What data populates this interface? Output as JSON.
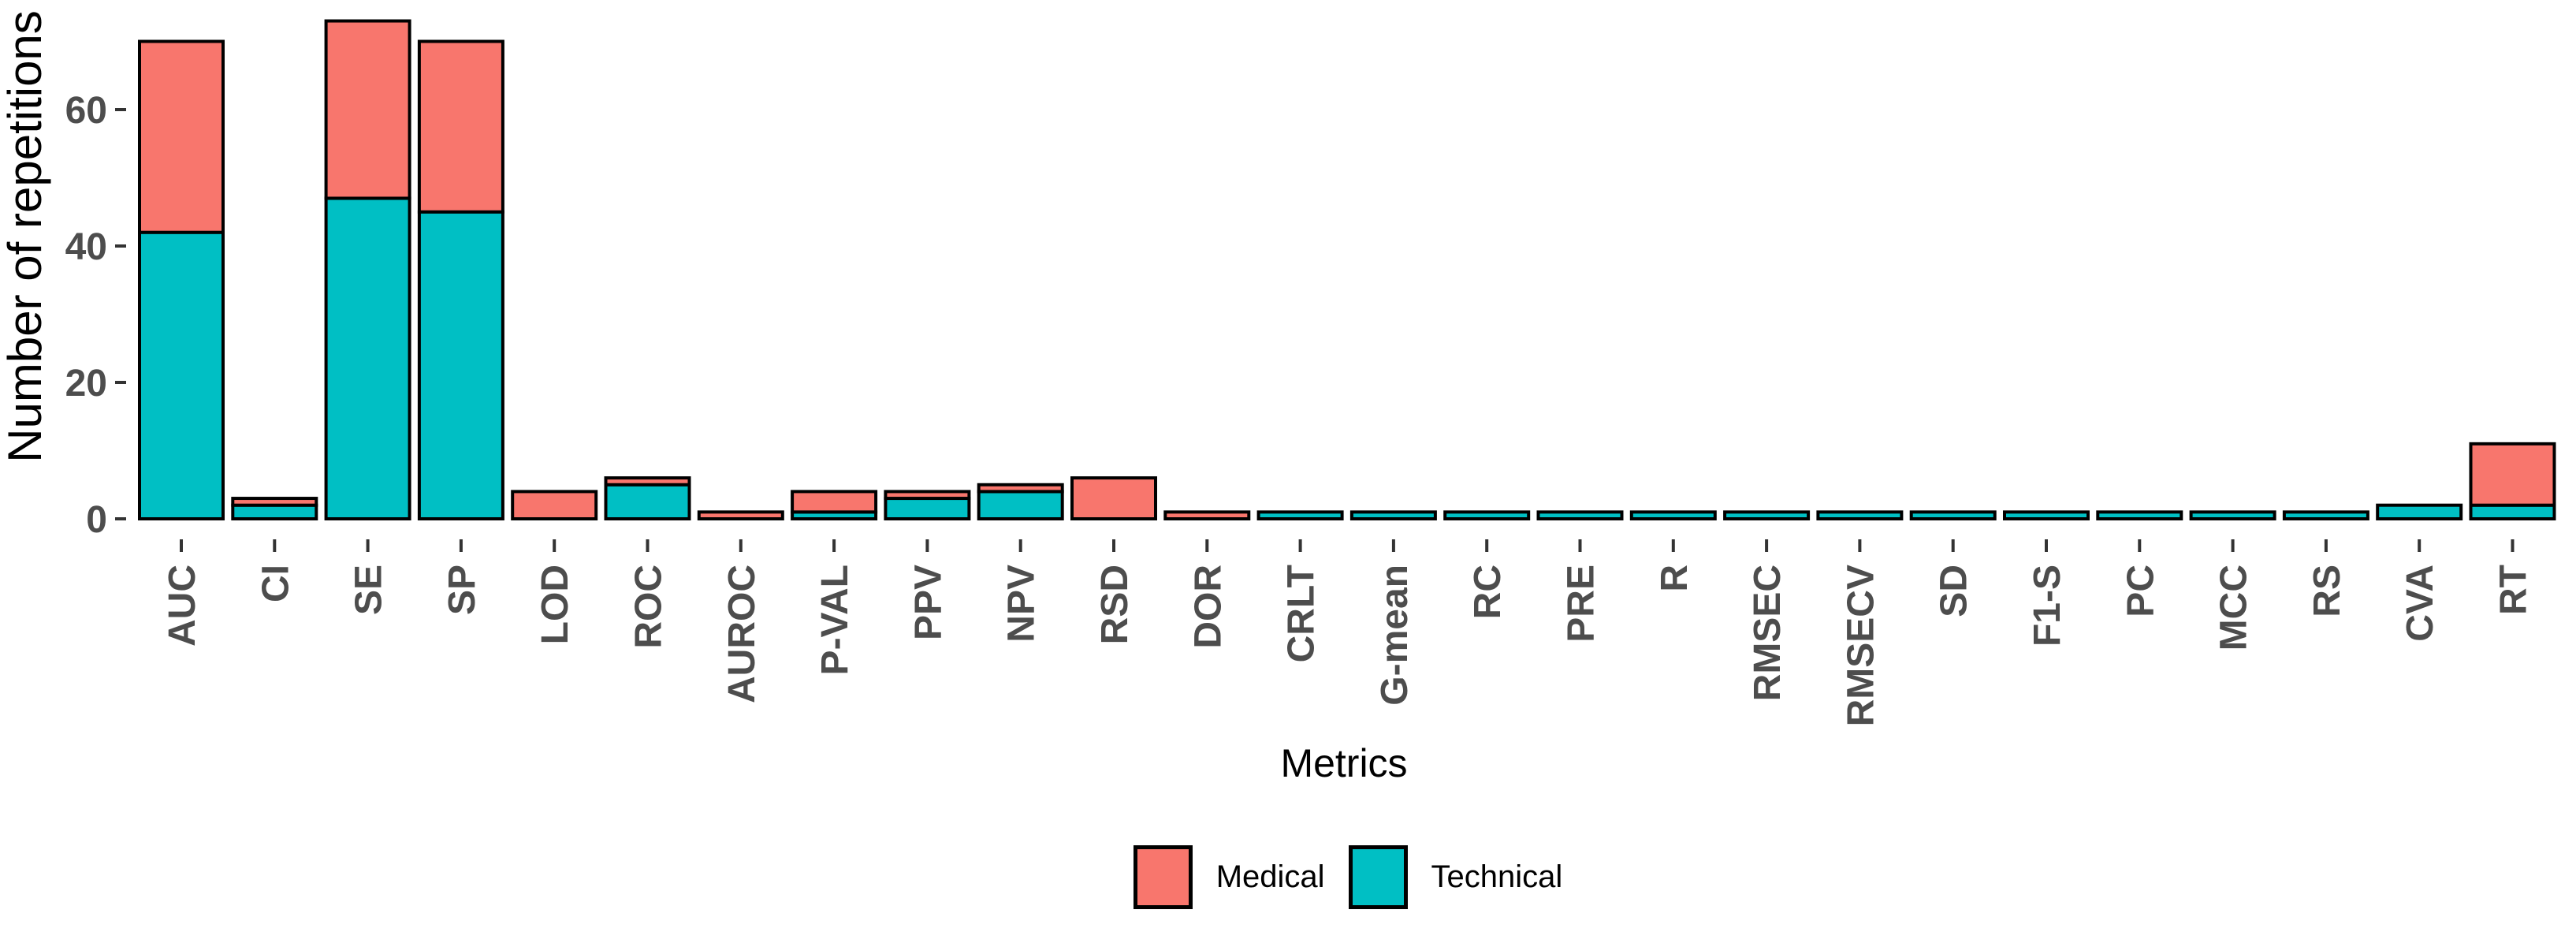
{
  "chart_data": {
    "type": "bar",
    "stacked": true,
    "title": "",
    "xlabel": "Metrics",
    "ylabel": "Number of repetitions",
    "categories": [
      "AUC",
      "CI",
      "SE",
      "SP",
      "LOD",
      "ROC",
      "AUROC",
      "P-VAL",
      "PPV",
      "NPV",
      "RSD",
      "DOR",
      "CRLT",
      "G-mean",
      "RC",
      "PRE",
      "R",
      "RMSEC",
      "RMSECV",
      "SD",
      "F1-S",
      "PC",
      "MCC",
      "RS",
      "CVA",
      "RT"
    ],
    "series": [
      {
        "name": "Medical",
        "color": "#F8766D",
        "values": [
          28,
          1,
          26,
          25,
          4,
          1,
          1,
          3,
          1,
          1,
          6,
          1,
          0,
          0,
          0,
          0,
          0,
          0,
          0,
          0,
          0,
          0,
          0,
          0,
          0,
          9
        ]
      },
      {
        "name": "Technical",
        "color": "#00BFC4",
        "values": [
          42,
          2,
          47,
          45,
          0,
          5,
          0,
          1,
          3,
          4,
          0,
          0,
          1,
          1,
          1,
          1,
          1,
          1,
          1,
          1,
          1,
          1,
          1,
          1,
          2,
          2
        ]
      }
    ],
    "stack_order_bottom_to_top": [
      "Technical",
      "Medical"
    ],
    "totals": [
      70,
      3,
      73,
      70,
      4,
      6,
      1,
      4,
      4,
      5,
      6,
      1,
      1,
      1,
      1,
      1,
      1,
      1,
      1,
      1,
      1,
      1,
      1,
      1,
      2,
      11
    ],
    "yticks": [
      0,
      20,
      40,
      60
    ],
    "ylim": [
      0,
      74
    ],
    "grid": false,
    "legend_position": "bottom",
    "bar_border_color": "#000000",
    "tick_color": "#333333",
    "axis_text_color": "#4d4d4d",
    "axis_title_color": "#000000",
    "background_color": "#ffffff"
  }
}
